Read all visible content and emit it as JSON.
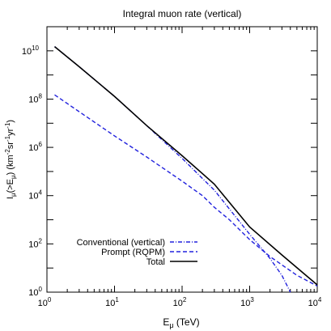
{
  "chart_data": {
    "type": "line",
    "title": "Integral muon rate (vertical)",
    "xlabel": {
      "base": "E",
      "sub": "μ",
      "tail": " (TeV)"
    },
    "ylabel": {
      "p1": "I",
      "p1sub": "μ",
      "p2": "(>E",
      "p2sub": "μ",
      "p3": ") (km",
      "p3sup": "-2",
      "p4": "sr",
      "p4sup": "-1",
      "p5": "yr",
      "p5sup": "-1",
      "p6": ")"
    },
    "xscale": "log",
    "yscale": "log",
    "xlim": [
      1,
      10000
    ],
    "ylim": [
      1,
      100000000000.0
    ],
    "x_ticks": [
      {
        "value": 1,
        "base": "10",
        "exp": "0"
      },
      {
        "value": 10,
        "base": "10",
        "exp": "1"
      },
      {
        "value": 100,
        "base": "10",
        "exp": "2"
      },
      {
        "value": 1000,
        "base": "10",
        "exp": "3"
      },
      {
        "value": 10000,
        "base": "10",
        "exp": "4"
      }
    ],
    "y_ticks": [
      {
        "value": 1,
        "base": "10",
        "exp": "0"
      },
      {
        "value": 100,
        "base": "10",
        "exp": "2"
      },
      {
        "value": 10000,
        "base": "10",
        "exp": "4"
      },
      {
        "value": 1000000,
        "base": "10",
        "exp": "6"
      },
      {
        "value": 100000000,
        "base": "10",
        "exp": "8"
      },
      {
        "value": 10000000000,
        "base": "10",
        "exp": "10"
      }
    ],
    "grid": false,
    "legend_position": "bottom-left",
    "series": [
      {
        "name": "Conventional (vertical)",
        "style": "dash-dot",
        "color": "#2222dd",
        "x": [
          1.3,
          3,
          10,
          30,
          100,
          300,
          1000,
          2000,
          3000,
          4000
        ],
        "y": [
          15000000000.0,
          2200000000.0,
          130000000.0,
          8000000.0,
          350000.0,
          17000.0,
          250.0,
          25,
          5,
          1
        ]
      },
      {
        "name": "Prompt (RQPM)",
        "style": "dashed",
        "color": "#2222dd",
        "x": [
          1.3,
          3,
          10,
          30,
          100,
          200,
          300,
          500,
          1000,
          2000,
          5000,
          10000
        ],
        "y": [
          150000000.0,
          30000000.0,
          3000000.0,
          400000.0,
          40000.0,
          10000.0,
          3300.0,
          1000.0,
          150.0,
          30,
          5,
          1.8
        ]
      },
      {
        "name": "Total",
        "style": "solid",
        "color": "#000000",
        "x": [
          1.3,
          3,
          10,
          30,
          100,
          300,
          1000,
          3000,
          10000
        ],
        "y": [
          15000000000.0,
          2200000000.0,
          130000000.0,
          8000000.0,
          450000.0,
          30000.0,
          500.0,
          35,
          2
        ]
      }
    ]
  }
}
